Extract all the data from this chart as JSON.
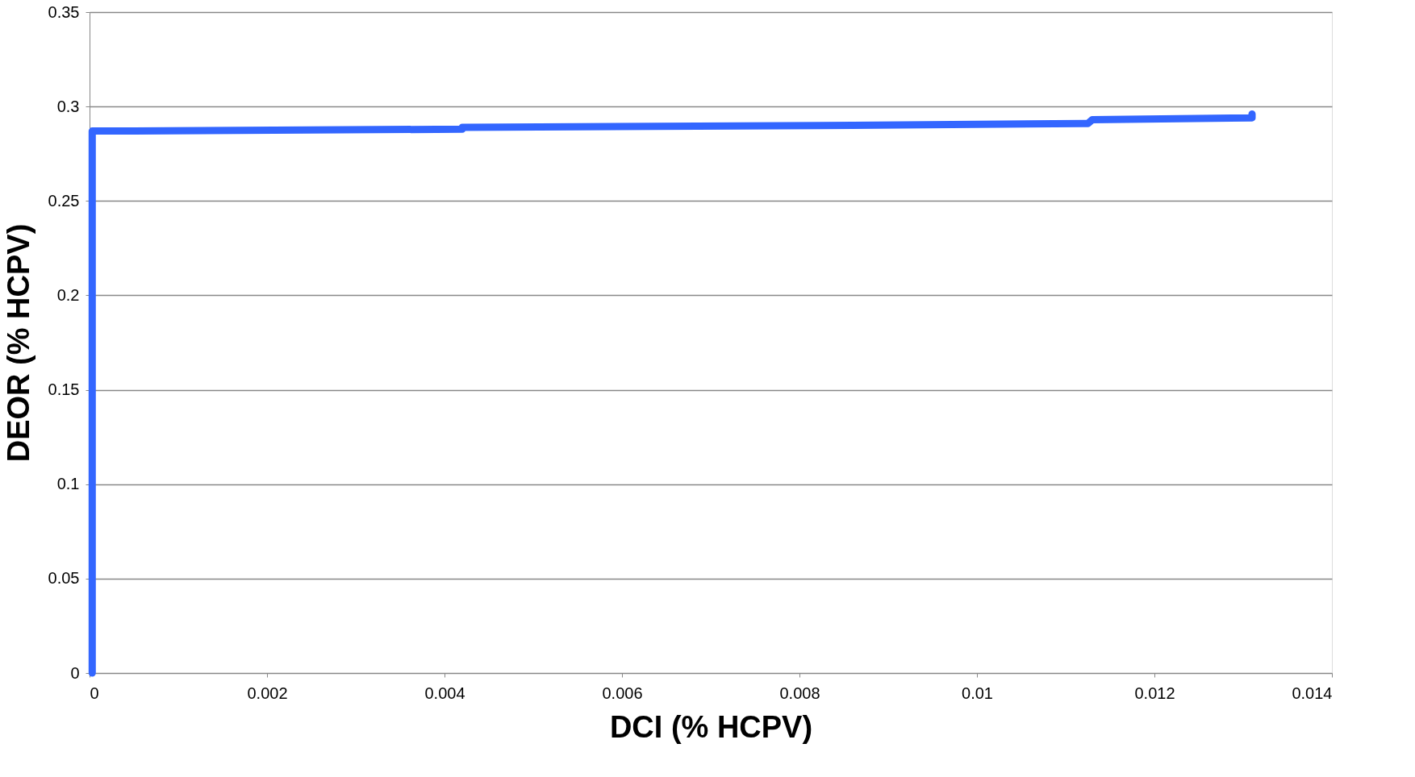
{
  "chart_data": {
    "type": "line",
    "xlabel": "DCI (% HCPV)",
    "ylabel": "DEOR (% HCPV)",
    "series": [
      {
        "color": "#3366ff",
        "x": [
          3e-05,
          3e-05,
          0.0005,
          0.0042,
          0.0042,
          0.0086,
          0.0112,
          0.01125,
          0.0113,
          0.0131,
          0.0131
        ],
        "values": [
          0,
          0.287,
          0.287,
          0.288,
          0.289,
          0.29,
          0.291,
          0.291,
          0.293,
          0.294,
          0.296
        ]
      }
    ],
    "xlim": [
      0,
      0.014
    ],
    "xticks": [
      0,
      0.002,
      0.004,
      0.006,
      0.008,
      0.01,
      0.012,
      0.014
    ],
    "ylim": [
      0,
      0.35
    ],
    "yticks": [
      0,
      0.05,
      0.1,
      0.15,
      0.2,
      0.25,
      0.3,
      0.35
    ],
    "grid": "y",
    "line_style": "solid",
    "legend": false
  }
}
